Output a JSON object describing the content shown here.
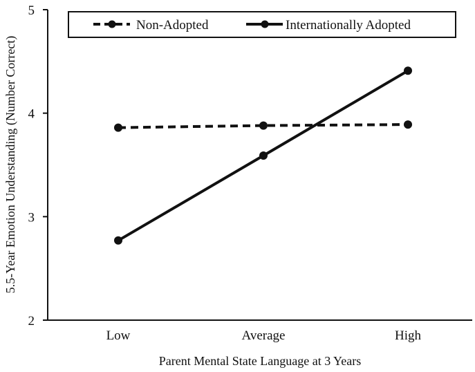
{
  "chart_data": {
    "type": "line",
    "title": "",
    "xlabel": "Parent Mental State Language at 3 Years",
    "ylabel": "5.5-Year Emotion Understanding  (Number Correct)",
    "categories": [
      "Low",
      "Average",
      "High"
    ],
    "ylim": [
      2,
      5
    ],
    "yticks": [
      "2",
      "3",
      "4",
      "5"
    ],
    "grid": false,
    "legend_position": "top",
    "series": [
      {
        "name": "Non-Adopted",
        "values": [
          3.86,
          3.88,
          3.89
        ],
        "line_style": "dashed",
        "color": "#111111"
      },
      {
        "name": "Internationally Adopted",
        "values": [
          2.77,
          3.59,
          4.41
        ],
        "line_style": "solid",
        "color": "#111111"
      }
    ]
  }
}
